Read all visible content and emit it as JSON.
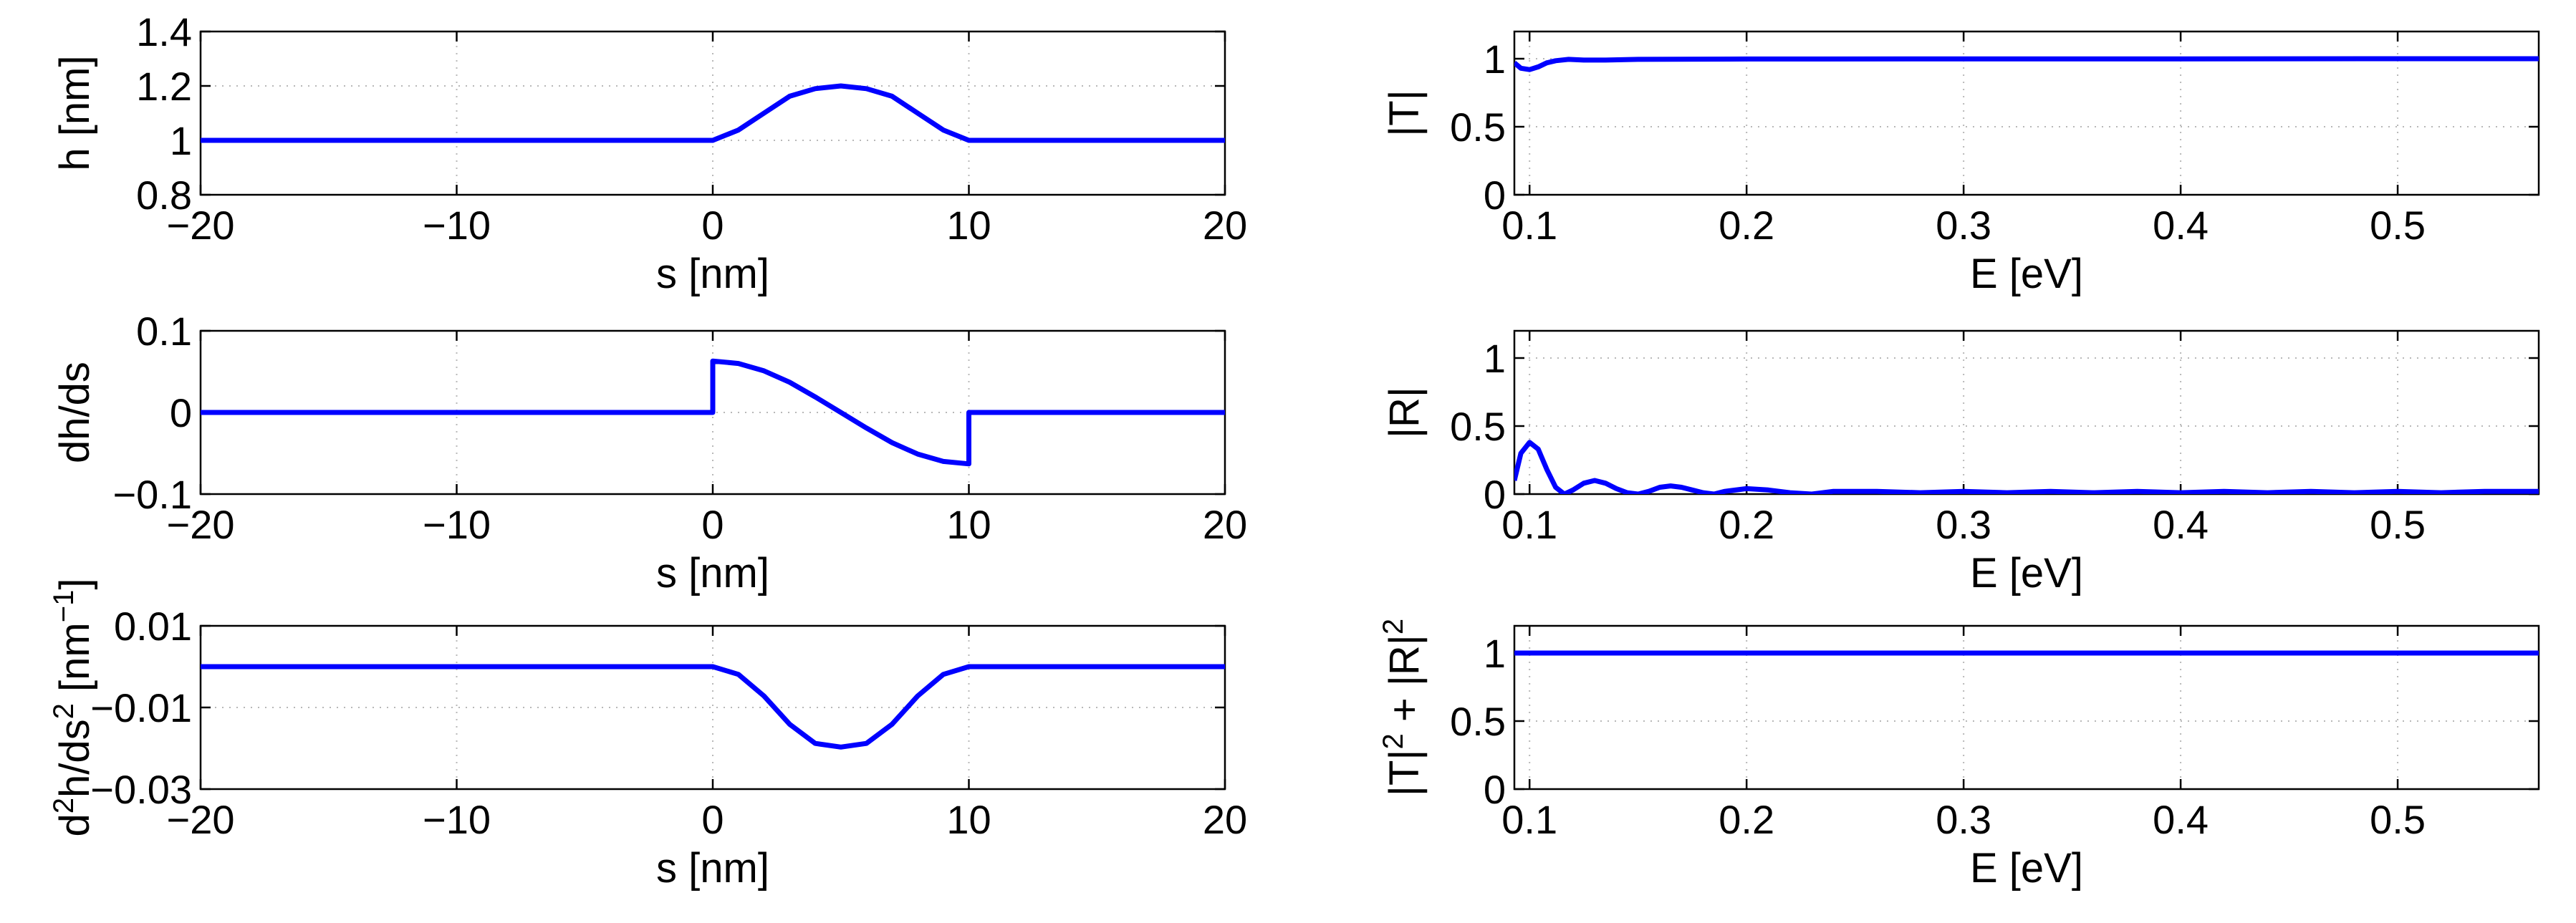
{
  "chart_data": [
    {
      "id": "h",
      "type": "line",
      "xlabel": "s [nm]",
      "ylabel_parts": [
        {
          "t": "h [nm]"
        }
      ],
      "xlim": [
        -20,
        20
      ],
      "ylim": [
        0.8,
        1.4
      ],
      "xticks": [
        -20,
        -10,
        0,
        10,
        20
      ],
      "xtick_labels": [
        "−20",
        "−10",
        "0",
        "10",
        "20"
      ],
      "yticks": [
        0.8,
        1.0,
        1.2,
        1.4
      ],
      "ytick_labels": [
        "0.8",
        "1",
        "1.2",
        "1.4"
      ],
      "grid": true,
      "color": "#0000ff",
      "series": [
        {
          "x": [
            -20,
            -15,
            -10,
            -5,
            0,
            1,
            2,
            3,
            4,
            5,
            6,
            7,
            8,
            9,
            10,
            15,
            20
          ],
          "y": [
            1.0,
            1.0,
            1.0,
            1.0,
            1.0,
            1.038,
            1.1,
            1.162,
            1.19,
            1.2,
            1.19,
            1.162,
            1.1,
            1.038,
            1.0,
            1.0,
            1.0
          ]
        }
      ]
    },
    {
      "id": "dh",
      "type": "line",
      "xlabel": "s [nm]",
      "ylabel_parts": [
        {
          "t": "dh/ds"
        }
      ],
      "xlim": [
        -20,
        20
      ],
      "ylim": [
        -0.1,
        0.1
      ],
      "xticks": [
        -20,
        -10,
        0,
        10,
        20
      ],
      "xtick_labels": [
        "−20",
        "−10",
        "0",
        "10",
        "20"
      ],
      "yticks": [
        -0.1,
        0,
        0.1
      ],
      "ytick_labels": [
        "−0.1",
        "0",
        "0.1"
      ],
      "grid": true,
      "color": "#0000ff",
      "series": [
        {
          "x": [
            -20,
            -10,
            0,
            0,
            1,
            2,
            3,
            4,
            5,
            6,
            7,
            8,
            9,
            10,
            10,
            15,
            20
          ],
          "y": [
            0,
            0,
            0,
            0.063,
            0.06,
            0.051,
            0.037,
            0.019,
            0.0,
            -0.019,
            -0.037,
            -0.051,
            -0.06,
            -0.063,
            0,
            0,
            0
          ]
        }
      ]
    },
    {
      "id": "d2h",
      "type": "line",
      "xlabel": "s [nm]",
      "ylabel_parts": [
        {
          "t": "d"
        },
        {
          "t": "2",
          "sup": true
        },
        {
          "t": "h/ds"
        },
        {
          "t": "2",
          "sup": true
        },
        {
          "t": " [nm"
        },
        {
          "t": "−1",
          "sup": true
        },
        {
          "t": "]"
        }
      ],
      "xlim": [
        -20,
        20
      ],
      "ylim": [
        -0.03,
        0.01
      ],
      "xticks": [
        -20,
        -10,
        0,
        10,
        20
      ],
      "xtick_labels": [
        "−20",
        "−10",
        "0",
        "10",
        "20"
      ],
      "yticks": [
        -0.03,
        -0.01,
        0.01
      ],
      "ytick_labels": [
        "−0.03",
        "−0.01",
        "0.01"
      ],
      "grid": true,
      "color": "#0000ff",
      "series": [
        {
          "x": [
            -20,
            -10,
            0,
            1,
            2,
            3,
            4,
            5,
            6,
            7,
            8,
            9,
            10,
            15,
            20
          ],
          "y": [
            0,
            0,
            0,
            -0.0019,
            -0.0072,
            -0.0141,
            -0.0188,
            -0.0197,
            -0.0188,
            -0.0141,
            -0.0072,
            -0.0019,
            0,
            0,
            0
          ]
        }
      ]
    },
    {
      "id": "T",
      "type": "line",
      "xlabel": "E [eV]",
      "ylabel_parts": [
        {
          "t": "|T|"
        }
      ],
      "xlim": [
        0.093,
        0.565
      ],
      "ylim": [
        0,
        1.2
      ],
      "xticks": [
        0.1,
        0.2,
        0.3,
        0.4,
        0.5
      ],
      "xtick_labels": [
        "0.1",
        "0.2",
        "0.3",
        "0.4",
        "0.5"
      ],
      "yticks": [
        0,
        0.5,
        1
      ],
      "ytick_labels": [
        "0",
        "0.5",
        "1"
      ],
      "grid": true,
      "color": "#0000ff",
      "series": [
        {
          "x": [
            0.093,
            0.096,
            0.1,
            0.104,
            0.108,
            0.112,
            0.118,
            0.125,
            0.135,
            0.15,
            0.2,
            0.3,
            0.4,
            0.5,
            0.565
          ],
          "y": [
            0.97,
            0.93,
            0.92,
            0.94,
            0.97,
            0.985,
            0.995,
            0.99,
            0.99,
            0.995,
            0.998,
            0.999,
            0.999,
            1.0,
            1.0
          ]
        }
      ]
    },
    {
      "id": "R",
      "type": "line",
      "xlabel": "E [eV]",
      "ylabel_parts": [
        {
          "t": "|R|"
        }
      ],
      "xlim": [
        0.093,
        0.565
      ],
      "ylim": [
        0,
        1.2
      ],
      "xticks": [
        0.1,
        0.2,
        0.3,
        0.4,
        0.5
      ],
      "xtick_labels": [
        "0.1",
        "0.2",
        "0.3",
        "0.4",
        "0.5"
      ],
      "yticks": [
        0,
        0.5,
        1
      ],
      "ytick_labels": [
        "0",
        "0.5",
        "1"
      ],
      "grid": true,
      "color": "#0000ff",
      "series": [
        {
          "x": [
            0.093,
            0.096,
            0.1,
            0.104,
            0.108,
            0.112,
            0.116,
            0.12,
            0.125,
            0.13,
            0.135,
            0.14,
            0.145,
            0.15,
            0.155,
            0.16,
            0.165,
            0.17,
            0.175,
            0.18,
            0.185,
            0.19,
            0.2,
            0.21,
            0.22,
            0.23,
            0.24,
            0.25,
            0.26,
            0.28,
            0.3,
            0.32,
            0.34,
            0.36,
            0.38,
            0.4,
            0.42,
            0.44,
            0.46,
            0.48,
            0.5,
            0.52,
            0.54,
            0.565
          ],
          "y": [
            0.1,
            0.3,
            0.38,
            0.33,
            0.18,
            0.05,
            0.0,
            0.03,
            0.08,
            0.1,
            0.08,
            0.04,
            0.01,
            0.0,
            0.02,
            0.05,
            0.06,
            0.05,
            0.03,
            0.01,
            0.0,
            0.02,
            0.04,
            0.03,
            0.01,
            0.0,
            0.02,
            0.02,
            0.02,
            0.01,
            0.02,
            0.01,
            0.02,
            0.01,
            0.02,
            0.01,
            0.02,
            0.01,
            0.02,
            0.01,
            0.02,
            0.01,
            0.02,
            0.02
          ]
        }
      ]
    },
    {
      "id": "sum",
      "type": "line",
      "xlabel": "E [eV]",
      "ylabel_parts": [
        {
          "t": "|T|"
        },
        {
          "t": "2",
          "sup": true
        },
        {
          "t": " + |R|"
        },
        {
          "t": "2",
          "sup": true
        }
      ],
      "xlim": [
        0.093,
        0.565
      ],
      "ylim": [
        0,
        1.2
      ],
      "xticks": [
        0.1,
        0.2,
        0.3,
        0.4,
        0.5
      ],
      "xtick_labels": [
        "0.1",
        "0.2",
        "0.3",
        "0.4",
        "0.5"
      ],
      "yticks": [
        0,
        0.5,
        1
      ],
      "ytick_labels": [
        "0",
        "0.5",
        "1"
      ],
      "grid": true,
      "color": "#0000ff",
      "series": [
        {
          "x": [
            0.093,
            0.2,
            0.3,
            0.4,
            0.5,
            0.565
          ],
          "y": [
            1.0,
            1.0,
            1.0,
            1.0,
            1.0,
            1.0
          ]
        }
      ]
    }
  ]
}
